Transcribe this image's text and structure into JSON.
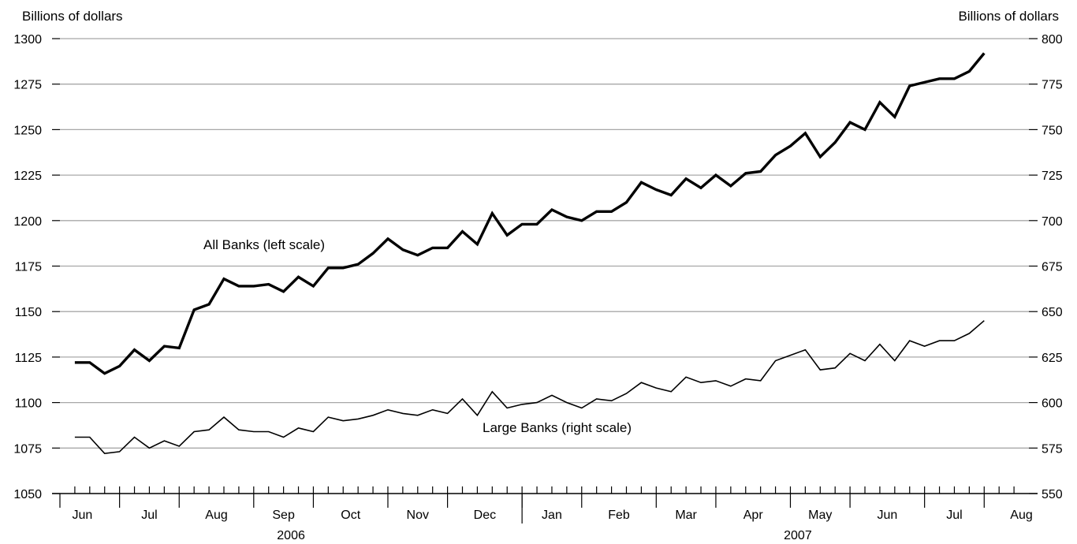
{
  "chart_data": {
    "type": "line",
    "left_axis": {
      "unit_label": "Billions of dollars",
      "ylim": [
        1050,
        1300
      ],
      "ticks": [
        "1050",
        "1075",
        "1100",
        "1125",
        "1150",
        "1175",
        "1200",
        "1225",
        "1250",
        "1275",
        "1300"
      ]
    },
    "right_axis": {
      "unit_label": "Billions of dollars",
      "ylim": [
        550,
        800
      ],
      "ticks": [
        "550",
        "575",
        "600",
        "625",
        "650",
        "675",
        "700",
        "725",
        "750",
        "775",
        "800"
      ]
    },
    "grid": true,
    "x_axis": {
      "start_week": 0,
      "end_week": 65,
      "month_labels": [
        {
          "label": "Jun",
          "week": 1.5
        },
        {
          "label": "Jul",
          "week": 6
        },
        {
          "label": "Aug",
          "week": 10.5
        },
        {
          "label": "Sep",
          "week": 15
        },
        {
          "label": "Oct",
          "week": 19.5
        },
        {
          "label": "Nov",
          "week": 24
        },
        {
          "label": "Dec",
          "week": 28.5
        },
        {
          "label": "Jan",
          "week": 33
        },
        {
          "label": "Feb",
          "week": 37.5
        },
        {
          "label": "Mar",
          "week": 42
        },
        {
          "label": "Apr",
          "week": 46.5
        },
        {
          "label": "May",
          "week": 51
        },
        {
          "label": "Jun",
          "week": 55.5
        },
        {
          "label": "Jul",
          "week": 60
        },
        {
          "label": "Aug",
          "week": 64.5
        }
      ],
      "month_boundaries": [
        0,
        4,
        8,
        13,
        17,
        22,
        26,
        31,
        35,
        40,
        44,
        49,
        53,
        58,
        62,
        67
      ],
      "years": [
        {
          "label": "2006",
          "week": 15.5
        },
        {
          "label": "2007",
          "week": 49.5
        }
      ],
      "year_divider_week": 31
    },
    "series": [
      {
        "name": "All Banks (left scale)",
        "axis": "left",
        "start_week": 1,
        "values": [
          1122,
          1122,
          1116,
          1120,
          1129,
          1123,
          1131,
          1130,
          1151,
          1154,
          1168,
          1164,
          1164,
          1165,
          1161,
          1169,
          1164,
          1174,
          1174,
          1176,
          1182,
          1190,
          1184,
          1181,
          1185,
          1185,
          1194,
          1187,
          1204,
          1192,
          1198,
          1198,
          1206,
          1202,
          1200,
          1205,
          1205,
          1210,
          1221,
          1217,
          1214,
          1223,
          1218,
          1225,
          1219,
          1226,
          1227,
          1236,
          1241,
          1248,
          1235,
          1243,
          1254,
          1250,
          1265,
          1257,
          1274,
          1276,
          1278,
          1278,
          1282,
          1292
        ]
      },
      {
        "name": "Large Banks (right scale)",
        "axis": "right",
        "start_week": 1,
        "values": [
          581,
          581,
          572,
          573,
          581,
          575,
          579,
          576,
          584,
          585,
          592,
          585,
          584,
          584,
          581,
          586,
          584,
          592,
          590,
          591,
          593,
          596,
          594,
          593,
          596,
          594,
          602,
          593,
          606,
          597,
          599,
          600,
          604,
          600,
          597,
          602,
          601,
          605,
          611,
          608,
          606,
          614,
          611,
          612,
          609,
          613,
          612,
          623,
          626,
          629,
          618,
          619,
          627,
          623,
          632,
          623,
          634,
          631,
          634,
          634,
          638,
          645
        ]
      }
    ]
  }
}
